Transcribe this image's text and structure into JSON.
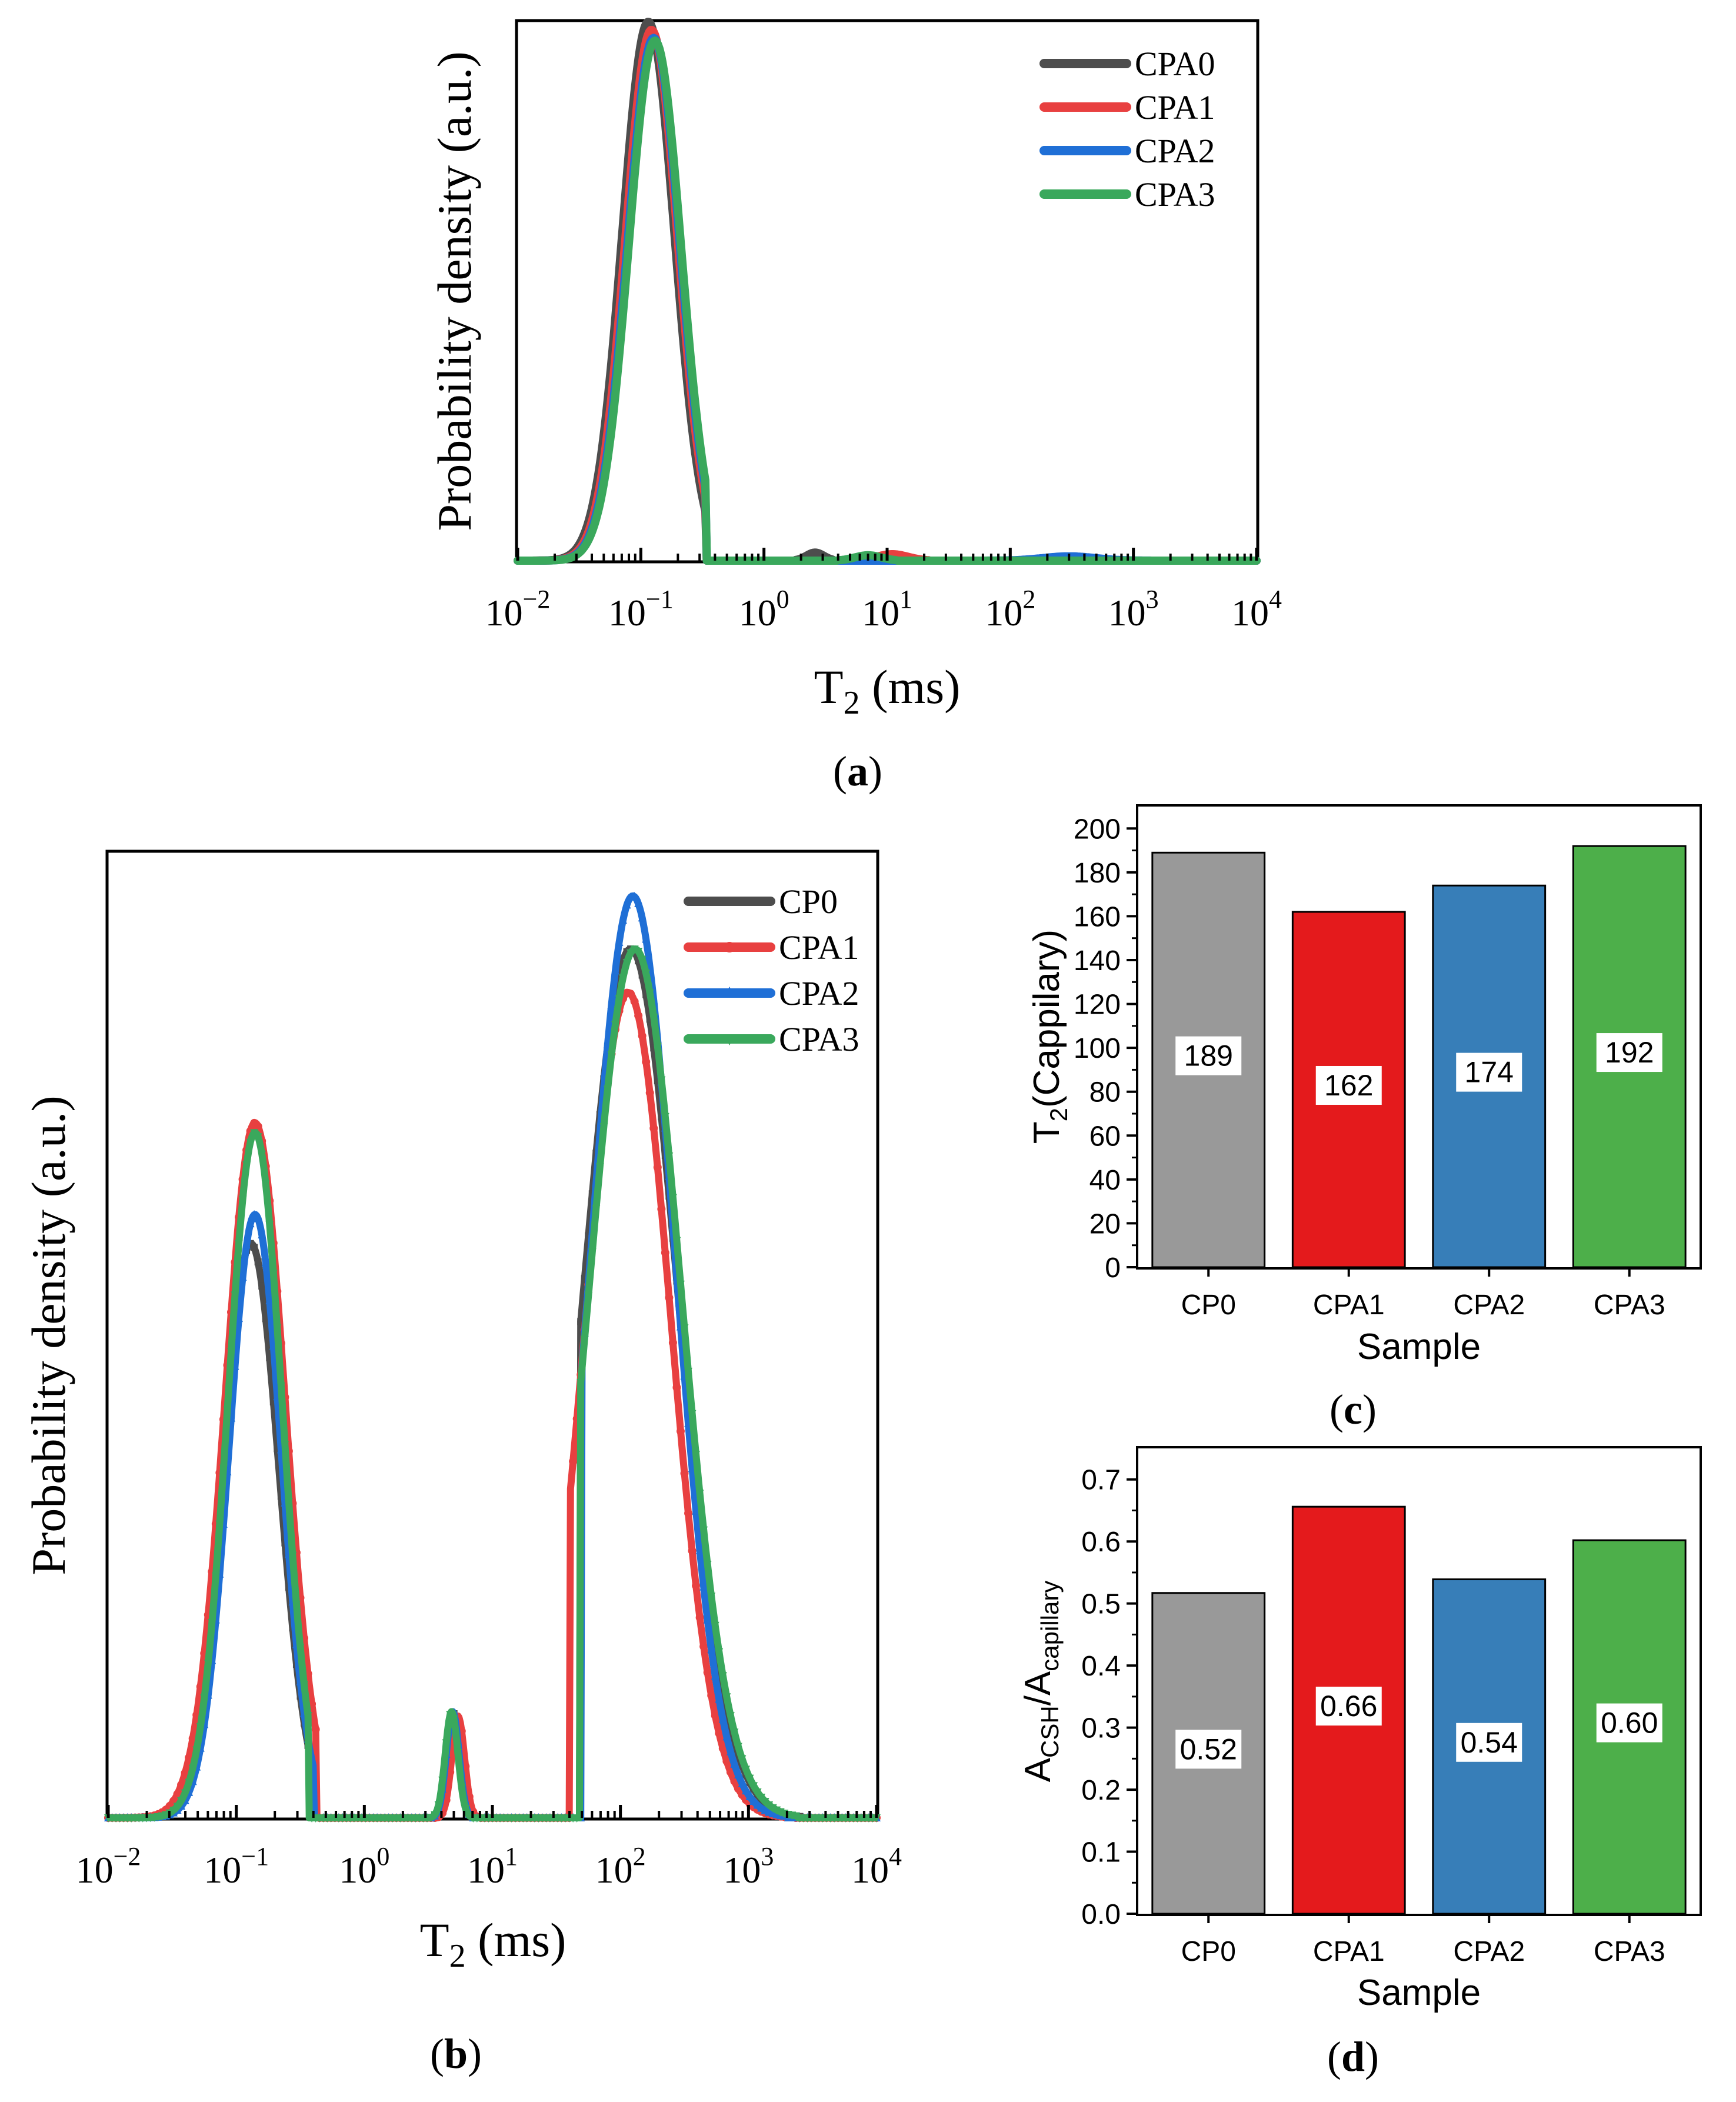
{
  "figure_labels": {
    "a": "a",
    "b": "b",
    "c": "c",
    "d": "d"
  },
  "chart_data": [
    {
      "id": "a",
      "type": "line",
      "xscale": "log",
      "xlim": [
        0.01,
        10000
      ],
      "xticks": [
        {
          "base": "10",
          "exp": "−2",
          "value": 0.01
        },
        {
          "base": "10",
          "exp": "−1",
          "value": 0.1
        },
        {
          "base": "10",
          "exp": "0",
          "value": 1
        },
        {
          "base": "10",
          "exp": "1",
          "value": 10
        },
        {
          "base": "10",
          "exp": "2",
          "value": 100
        },
        {
          "base": "10",
          "exp": "3",
          "value": 1000
        },
        {
          "base": "10",
          "exp": "4",
          "value": 10000
        }
      ],
      "xlabel": {
        "main": "T",
        "sub": "2",
        "rest": " (ms)"
      },
      "ylabel": "Probability density (a.u.)",
      "ylim": [
        0,
        1.0
      ],
      "legend_position": "top-right",
      "series": [
        {
          "name": "CPA0",
          "color": "#4d4d4d",
          "peaks": [
            {
              "center": 0.115,
              "width": 0.3,
              "height": 1.0,
              "lo": 0.012,
              "hi": 0.34
            },
            {
              "center": 2.6,
              "width": 0.1,
              "height": 0.015,
              "lo": 1.8,
              "hi": 3.6
            }
          ]
        },
        {
          "name": "CPA1",
          "color": "#e84040",
          "peaks": [
            {
              "center": 0.122,
              "width": 0.3,
              "height": 0.985,
              "lo": 0.012,
              "hi": 0.34
            },
            {
              "center": 11,
              "width": 0.18,
              "height": 0.012,
              "lo": 5,
              "hi": 22
            }
          ]
        },
        {
          "name": "CPA2",
          "color": "#1f6fd6",
          "peaks": [
            {
              "center": 0.127,
              "width": 0.3,
              "height": 0.97,
              "lo": 0.012,
              "hi": 0.34
            },
            {
              "center": 300,
              "width": 0.3,
              "height": 0.008,
              "lo": 60,
              "hi": 2000
            }
          ]
        },
        {
          "name": "CPA3",
          "color": "#3aa85c",
          "peaks": [
            {
              "center": 0.13,
              "width": 0.3,
              "height": 0.965,
              "lo": 0.012,
              "hi": 0.34
            },
            {
              "center": 7,
              "width": 0.15,
              "height": 0.01,
              "lo": 4,
              "hi": 12
            }
          ]
        }
      ]
    },
    {
      "id": "b",
      "type": "scatter",
      "xscale": "log",
      "xlim": [
        0.01,
        10000
      ],
      "xticks": [
        {
          "base": "10",
          "exp": "−2",
          "value": 0.01
        },
        {
          "base": "10",
          "exp": "−1",
          "value": 0.1
        },
        {
          "base": "10",
          "exp": "0",
          "value": 1
        },
        {
          "base": "10",
          "exp": "1",
          "value": 10
        },
        {
          "base": "10",
          "exp": "2",
          "value": 100
        },
        {
          "base": "10",
          "exp": "3",
          "value": 1000
        },
        {
          "base": "10",
          "exp": "4",
          "value": 10000
        }
      ],
      "xlabel": {
        "main": "T",
        "sub": "2",
        "rest": " (ms)"
      },
      "ylabel": "Probability density (a.u.)",
      "ylim": [
        0,
        1.0
      ],
      "legend_position": "top-right",
      "series": [
        {
          "name": "CP0",
          "color": "#4d4d4d",
          "marker": "square",
          "peaks": [
            {
              "center": 0.13,
              "width": 0.31,
              "height": 0.595,
              "lo": 0.01,
              "hi": 0.4
            },
            {
              "center": 4.9,
              "width": 0.07,
              "height": 0.11,
              "lo": 3.2,
              "hi": 7.2
            },
            {
              "center": 120,
              "width": 0.52,
              "height": 0.9,
              "lo": 48,
              "hi": 2600
            }
          ]
        },
        {
          "name": "CPA1",
          "color": "#e84040",
          "marker": "circle",
          "peaks": [
            {
              "center": 0.14,
              "width": 0.33,
              "height": 0.72,
              "lo": 0.01,
              "hi": 0.42
            },
            {
              "center": 5.4,
              "width": 0.07,
              "height": 0.105,
              "lo": 3.8,
              "hi": 7.8
            },
            {
              "center": 115,
              "width": 0.47,
              "height": 0.855,
              "lo": 40,
              "hi": 2300
            }
          ]
        },
        {
          "name": "CPA2",
          "color": "#1f6fd6",
          "marker": "triangle-up",
          "peaks": [
            {
              "center": 0.14,
              "width": 0.29,
              "height": 0.625,
              "lo": 0.01,
              "hi": 0.4
            },
            {
              "center": 4.9,
              "width": 0.07,
              "height": 0.11,
              "lo": 3.4,
              "hi": 7.0
            },
            {
              "center": 125,
              "width": 0.47,
              "height": 0.955,
              "lo": 50,
              "hi": 2000
            }
          ]
        },
        {
          "name": "CPA3",
          "color": "#3aa85c",
          "marker": "triangle-down",
          "peaks": [
            {
              "center": 0.14,
              "width": 0.3,
              "height": 0.71,
              "lo": 0.01,
              "hi": 0.37
            },
            {
              "center": 4.8,
              "width": 0.07,
              "height": 0.11,
              "lo": 3.3,
              "hi": 7.0
            },
            {
              "center": 130,
              "width": 0.51,
              "height": 0.9,
              "lo": 48,
              "hi": 2400
            }
          ]
        }
      ]
    },
    {
      "id": "c",
      "type": "bar",
      "categories": [
        "CP0",
        "CPA1",
        "CPA2",
        "CPA3"
      ],
      "values": [
        189,
        162,
        174,
        192
      ],
      "data_labels": [
        "189",
        "162",
        "174",
        "192"
      ],
      "colors": [
        "#999999",
        "#e41a1c",
        "#377eb8",
        "#4daf4a"
      ],
      "xlabel": "Sample",
      "ylabel": {
        "main": "T",
        "sub": "2",
        "rest": "(Cappilary)"
      },
      "ylim": [
        0,
        210
      ],
      "yticks": [
        "0",
        "20",
        "40",
        "60",
        "80",
        "100",
        "120",
        "140",
        "160",
        "180",
        "200"
      ]
    },
    {
      "id": "d",
      "type": "bar",
      "categories": [
        "CP0",
        "CPA1",
        "CPA2",
        "CPA3"
      ],
      "values": [
        0.517,
        0.656,
        0.539,
        0.602
      ],
      "data_labels": [
        "0.52",
        "0.66",
        "0.54",
        "0.60"
      ],
      "colors": [
        "#999999",
        "#e41a1c",
        "#377eb8",
        "#4daf4a"
      ],
      "xlabel": "Sample",
      "ylabel": {
        "a": "A",
        "sub1": "CSH",
        "slash": "/A",
        "sub2": "capillary"
      },
      "ylim": [
        0,
        0.75
      ],
      "yticks": [
        "0.0",
        "0.1",
        "0.2",
        "0.3",
        "0.4",
        "0.5",
        "0.6",
        "0.7"
      ]
    }
  ]
}
